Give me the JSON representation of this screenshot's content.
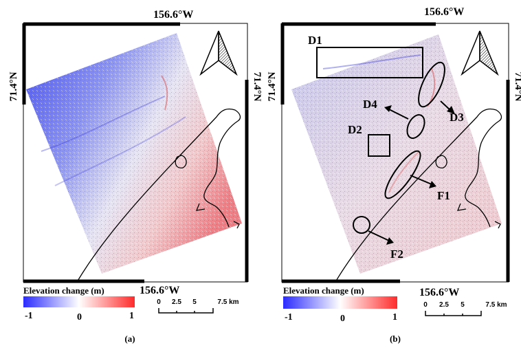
{
  "colors": {
    "neg": "#2b2bff",
    "zero": "#ffffff",
    "pos": "#ff2b2b",
    "frame": "#000000"
  },
  "panels": [
    {
      "id": "a",
      "label": "(a)",
      "lon_top": "156.6°W",
      "lon_bottom": "156.6°W",
      "lat_left": "71.4°N",
      "lat_right": "71.4°N",
      "legend": {
        "title": "Elevation change (m)",
        "min": "-1",
        "mid": "0",
        "max": "1"
      },
      "scalebar": {
        "ticks": [
          "0",
          "2.5",
          "5",
          "7.5 km"
        ]
      }
    },
    {
      "id": "b",
      "label": "(b)",
      "lon_top": "156.6°W",
      "lon_bottom": "156.6°W",
      "lat_left": "71.4°N",
      "lat_right": "71.4°N",
      "legend": {
        "title": "Elevation change (m)",
        "min": "-1",
        "mid": "0",
        "max": "1"
      },
      "scalebar": {
        "ticks": [
          "0",
          "2.5",
          "5",
          "7.5 km"
        ]
      },
      "annotations": {
        "d1": "D1",
        "d2": "D2",
        "d3": "D3",
        "d4": "D4",
        "f1": "F1",
        "f2": "F2"
      }
    }
  ]
}
